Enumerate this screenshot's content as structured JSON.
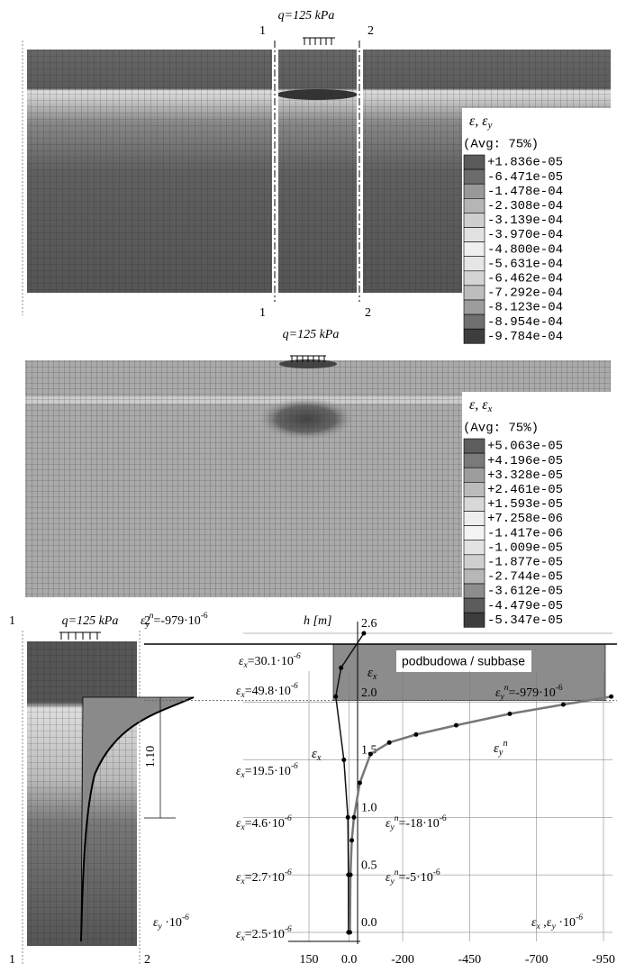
{
  "top_figure": {
    "load_label": "q=125 kPa",
    "section_labels": [
      "1",
      "2",
      "1",
      "2"
    ],
    "legend": {
      "title": {
        "text": "ε,  ε",
        "sub": "y"
      },
      "avg": "(Avg: 75%)",
      "entries": [
        "+1.836e-05",
        "-6.471e-05",
        "-1.478e-04",
        "-2.308e-04",
        "-3.139e-04",
        "-3.970e-04",
        "-4.800e-04",
        "-5.631e-04",
        "-6.462e-04",
        "-7.292e-04",
        "-8.123e-04",
        "-8.954e-04",
        "-9.784e-04"
      ]
    }
  },
  "middle_figure": {
    "load_label": "q=125 kPa",
    "legend": {
      "title": {
        "text": "ε,  ε",
        "sub": "x"
      },
      "avg": "(Avg: 75%)",
      "entries": [
        "+5.063e-05",
        "+4.196e-05",
        "+3.328e-05",
        "+2.461e-05",
        "+1.593e-05",
        "+7.258e-06",
        "-1.417e-06",
        "-1.009e-05",
        "-1.877e-05",
        "-2.744e-05",
        "-3.612e-05",
        "-4.479e-05",
        "-5.347e-05"
      ]
    }
  },
  "bottom_left": {
    "load_label": "q=125 kPa",
    "section_labels": [
      "1",
      "2",
      "1",
      "2"
    ],
    "peak_label": {
      "text": "ε",
      "sub": "y",
      "sup": "n",
      "text2": "=-979·10",
      "sup2": "-6"
    },
    "depth_label": "1.10",
    "unit_label": {
      "text": "ε",
      "sub": "y",
      "text2": " ·10",
      "sup": "-6"
    }
  },
  "chart_data": {
    "type": "line",
    "y_label": "h  [m]",
    "x_label": {
      "text": "ε",
      "sub": "x",
      "text2": " ,ε",
      "sub2": "y",
      "text3": " ·10",
      "sup": "-6"
    },
    "layer_label": "podbudowa / subbase",
    "xlim": [
      150,
      -950
    ],
    "ylim": [
      0,
      2.6
    ],
    "xticks": [
      150,
      {
        "value": 0,
        "label": "0.0"
      },
      -200,
      -450,
      -700,
      -950
    ],
    "yticks": [
      {
        "value": 0,
        "label": "0.0"
      },
      0.5,
      {
        "value": 1,
        "label": "1.0"
      },
      1.5,
      {
        "value": 2,
        "label": "2.0"
      },
      2.6
    ],
    "grid": true,
    "series": [
      {
        "label": {
          "text": "ε",
          "sub": "x"
        },
        "color": "#111111",
        "x": [
          2.5,
          2.7,
          4.6,
          19.5,
          49.8,
          30.1,
          -55
        ],
        "y": [
          0,
          0.5,
          1.0,
          1.5,
          2.05,
          2.3,
          2.6
        ]
      },
      {
        "label": {
          "text": "ε",
          "sub": "y",
          "sup": "n"
        },
        "color": "#777777",
        "x": [
          -979,
          -800,
          -600,
          -400,
          -250,
          -150,
          -80,
          -40,
          -18,
          -10,
          -5,
          -3
        ],
        "y": [
          2.05,
          1.98,
          1.9,
          1.8,
          1.72,
          1.65,
          1.55,
          1.3,
          1.0,
          0.8,
          0.5,
          0.0
        ]
      }
    ],
    "annotations": [
      {
        "text": "ε",
        "sub": "x",
        "text2": "=30.1·10",
        "sup": "-6"
      },
      {
        "text": "ε",
        "sub": "x",
        "text2": "=49.8·10",
        "sup": "-6"
      },
      {
        "text": "ε",
        "sub": "x",
        "text2": "=19.5·10",
        "sup": "-6"
      },
      {
        "text": "ε",
        "sub": "x",
        "text2": "=4.6·10",
        "sup": "-6"
      },
      {
        "text": "ε",
        "sub": "x",
        "text2": "=2.7·10",
        "sup": "-6"
      },
      {
        "text": "ε",
        "sub": "x",
        "text2": "=2.5·10",
        "sup": "-6"
      },
      {
        "text": "ε",
        "sub": "y",
        "sup": "n",
        "text2": "=-979·10",
        "sup2": "-6"
      },
      {
        "text": "ε",
        "sub": "y",
        "sup": "n",
        "text2": "=-18·10",
        "sup2": "-6"
      },
      {
        "text": "ε",
        "sub": "y",
        "sup": "n",
        "text2": "=-5·10",
        "sup2": "-6"
      }
    ]
  }
}
